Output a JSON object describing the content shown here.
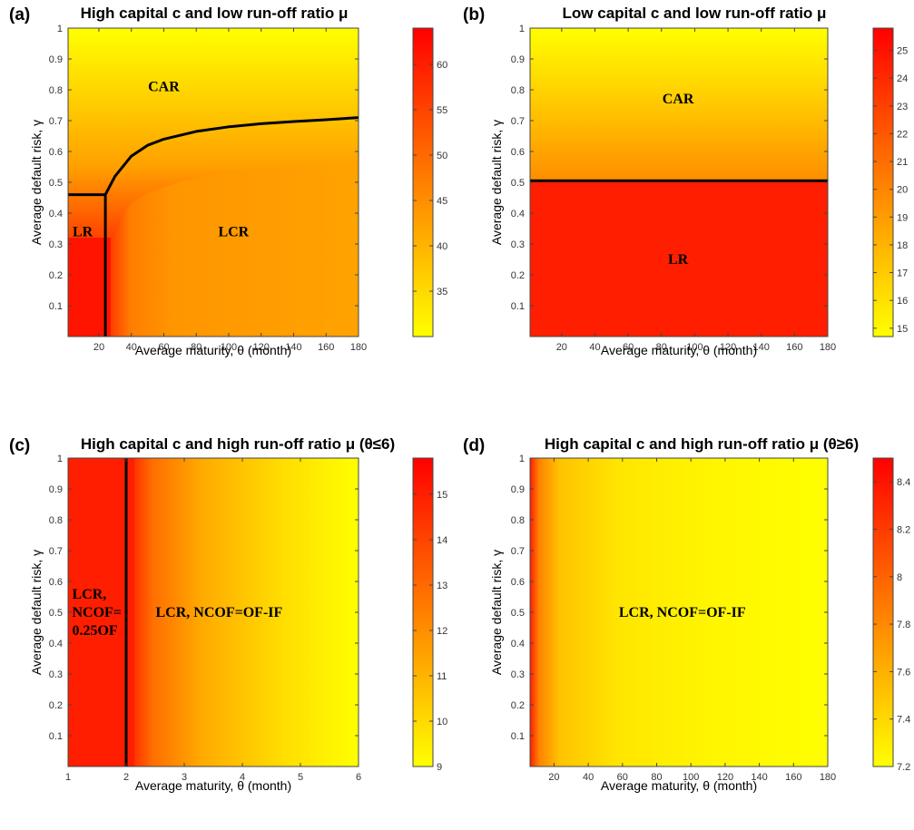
{
  "chart_data": [
    {
      "type": "heatmap",
      "panel_label": "(a)",
      "title": "High capital c and low run-off ratio μ",
      "xlabel": "Average maturity, θ (month)",
      "ylabel": "Average default risk, γ",
      "xlim": [
        1,
        180
      ],
      "ylim": [
        0,
        1
      ],
      "xticks": [
        "20",
        "40",
        "60",
        "80",
        "100",
        "120",
        "140",
        "160",
        "180"
      ],
      "yticks": [
        "0.1",
        "0.2",
        "0.3",
        "0.4",
        "0.5",
        "0.6",
        "0.7",
        "0.8",
        "0.9",
        "1"
      ],
      "colorbar": {
        "range": [
          30,
          64
        ],
        "ticks": [
          "35",
          "40",
          "45",
          "50",
          "55",
          "60"
        ],
        "colormap": "autumn-reversed"
      },
      "regions": [
        {
          "text": [
            "CAR"
          ],
          "x": 60,
          "y": 0.81
        },
        {
          "text": [
            "LR"
          ],
          "x": 10,
          "y": 0.34
        },
        {
          "text": [
            "LCR"
          ],
          "x": 103,
          "y": 0.34
        }
      ],
      "boundaries": [
        {
          "points": [
            [
              1,
              0.46
            ],
            [
              24,
              0.46
            ]
          ]
        },
        {
          "points": [
            [
              24,
              0
            ],
            [
              24,
              0.46
            ]
          ]
        },
        {
          "points": [
            [
              24,
              0.46
            ],
            [
              30,
              0.52
            ],
            [
              40,
              0.585
            ],
            [
              50,
              0.62
            ],
            [
              60,
              0.64
            ],
            [
              80,
              0.665
            ],
            [
              100,
              0.68
            ],
            [
              120,
              0.69
            ],
            [
              140,
              0.697
            ],
            [
              160,
              0.703
            ],
            [
              180,
              0.71
            ]
          ]
        }
      ]
    },
    {
      "type": "heatmap",
      "panel_label": "(b)",
      "title": "Low capital c and low run-off ratio μ",
      "xlabel": "Average maturity, θ (month)",
      "ylabel": "Average default risk, γ",
      "xlim": [
        1,
        180
      ],
      "ylim": [
        0,
        1
      ],
      "xticks": [
        "20",
        "40",
        "60",
        "80",
        "100",
        "120",
        "140",
        "160",
        "180"
      ],
      "yticks": [
        "0.1",
        "0.2",
        "0.3",
        "0.4",
        "0.5",
        "0.6",
        "0.7",
        "0.8",
        "0.9",
        "1"
      ],
      "colorbar": {
        "range": [
          14.7,
          25.8
        ],
        "ticks": [
          "15",
          "16",
          "17",
          "18",
          "19",
          "20",
          "21",
          "22",
          "23",
          "24",
          "25"
        ],
        "colormap": "autumn-reversed"
      },
      "regions": [
        {
          "text": [
            "CAR"
          ],
          "x": 90,
          "y": 0.77
        },
        {
          "text": [
            "LR"
          ],
          "x": 90,
          "y": 0.25
        }
      ],
      "boundaries": [
        {
          "points": [
            [
              1,
              0.505
            ],
            [
              180,
              0.505
            ]
          ]
        }
      ]
    },
    {
      "type": "heatmap",
      "panel_label": "(c)",
      "title": "High capital c and high run-off ratio μ (θ≤6)",
      "xlabel": "Average maturity, θ (month)",
      "ylabel": "Average default risk, γ",
      "xlim": [
        1,
        6
      ],
      "ylim": [
        0,
        1
      ],
      "xticks": [
        "1",
        "2",
        "3",
        "4",
        "5",
        "6"
      ],
      "yticks": [
        "0.1",
        "0.2",
        "0.3",
        "0.4",
        "0.5",
        "0.6",
        "0.7",
        "0.8",
        "0.9",
        "1"
      ],
      "colorbar": {
        "range": [
          9,
          15.8
        ],
        "ticks": [
          "9",
          "10",
          "11",
          "12",
          "13",
          "14",
          "15"
        ],
        "colormap": "autumn-reversed"
      },
      "regions": [
        {
          "text": [
            "LCR,",
            "NCOF=",
            "0.25OF"
          ],
          "x": 1.07,
          "y": 0.5
        },
        {
          "text": [
            "LCR, NCOF=OF-IF"
          ],
          "x": 3.6,
          "y": 0.5
        }
      ],
      "boundaries": [
        {
          "points": [
            [
              2,
              0
            ],
            [
              2,
              1
            ]
          ]
        }
      ]
    },
    {
      "type": "heatmap",
      "panel_label": "(d)",
      "title": "High capital c and high run-off ratio μ (θ≥6)",
      "xlabel": "Average maturity, θ (month)",
      "ylabel": "Average default risk, γ",
      "xlim": [
        6,
        180
      ],
      "ylim": [
        0,
        1
      ],
      "xticks": [
        "20",
        "40",
        "60",
        "80",
        "100",
        "120",
        "140",
        "160",
        "180"
      ],
      "yticks": [
        "0.1",
        "0.2",
        "0.3",
        "0.4",
        "0.5",
        "0.6",
        "0.7",
        "0.8",
        "0.9",
        "1"
      ],
      "colorbar": {
        "range": [
          7.2,
          8.5
        ],
        "ticks": [
          "7.2",
          "7.4",
          "7.6",
          "7.8",
          "8",
          "8.2",
          "8.4"
        ],
        "colormap": "autumn-reversed"
      },
      "regions": [
        {
          "text": [
            "LCR, NCOF=OF-IF"
          ],
          "x": 95,
          "y": 0.5
        }
      ],
      "boundaries": []
    }
  ]
}
